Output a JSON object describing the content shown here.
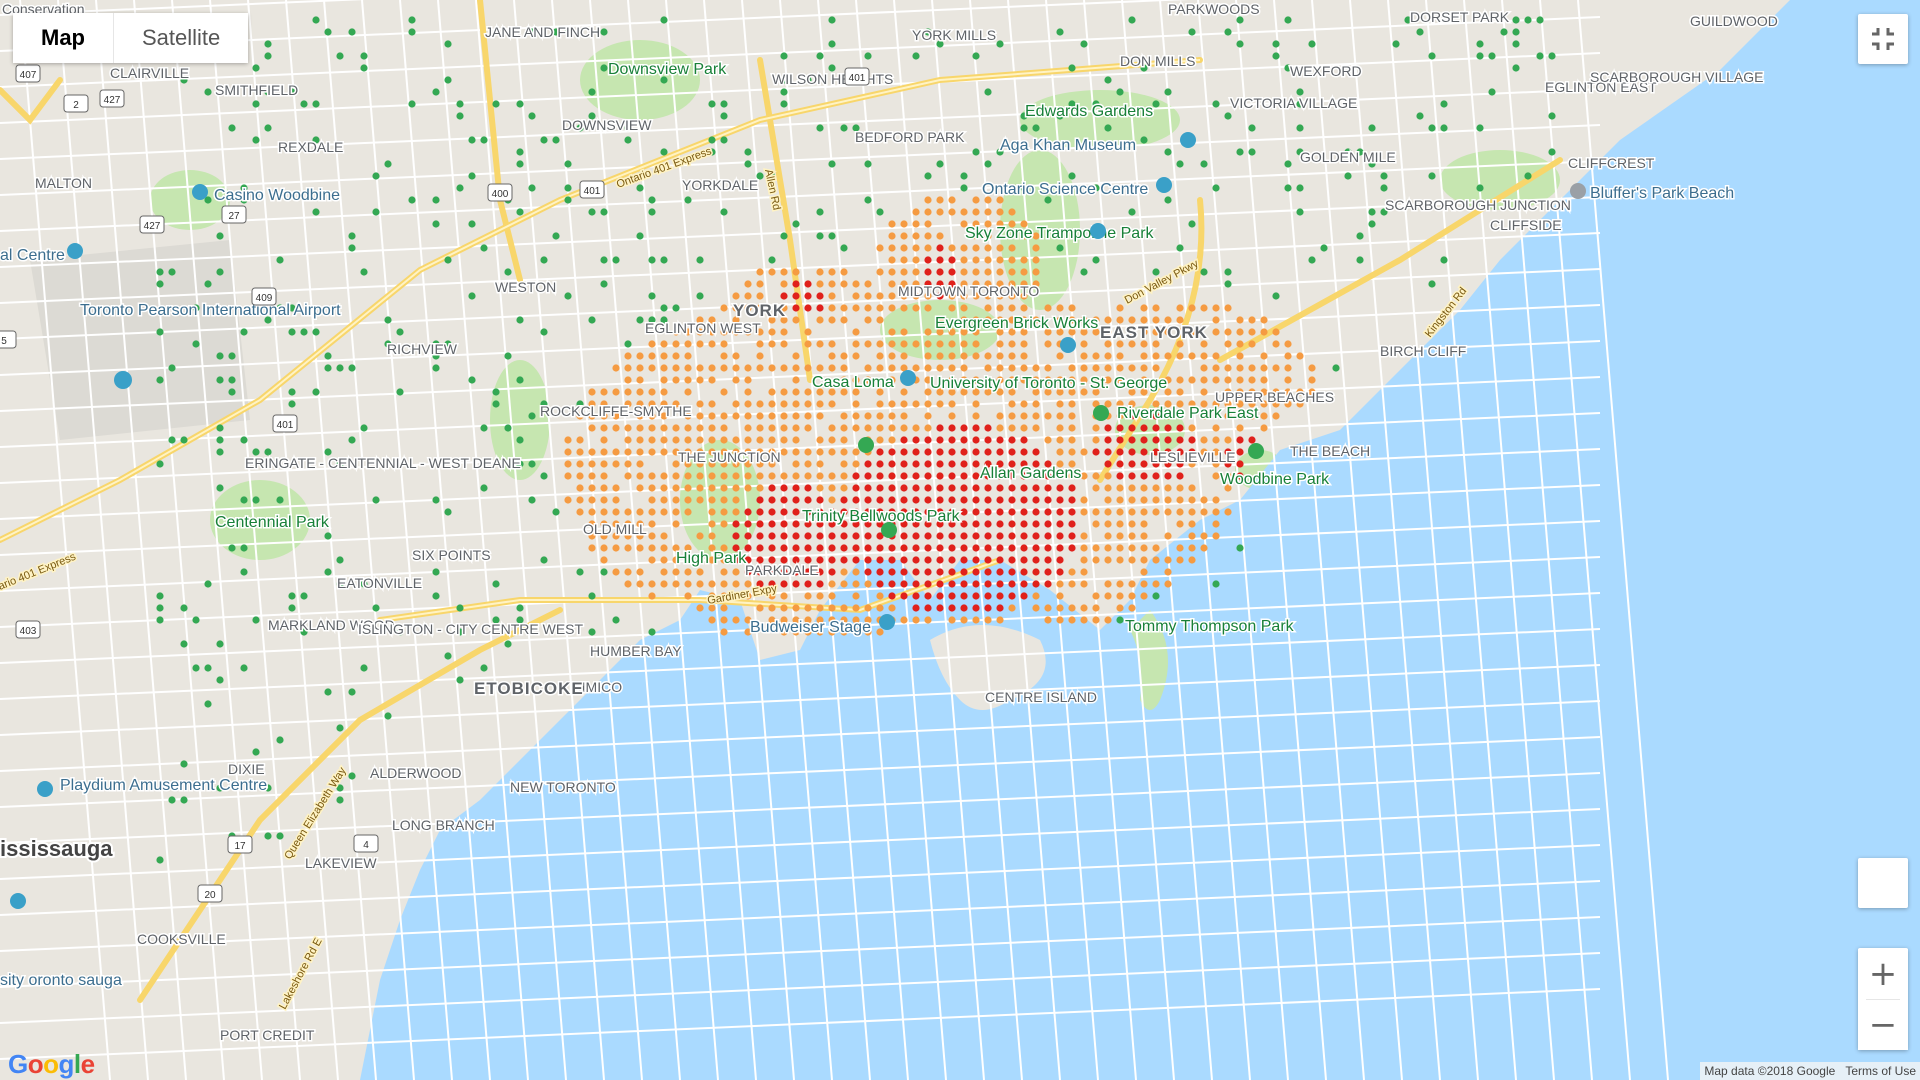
{
  "map_type": {
    "map_label": "Map",
    "satellite_label": "Satellite",
    "selected": "Map"
  },
  "controls": {
    "fullscreen_icon": "fullscreen-exit-icon",
    "pegman_icon": "street-view-pegman-icon",
    "zoom_in_label": "+",
    "zoom_out_label": "−"
  },
  "labels": {
    "district": [
      "YORK",
      "EAST YORK",
      "ETOBICOKE"
    ],
    "city": [
      "issis​sauga"
    ],
    "places": [
      "Conservation",
      "JANE AND FINCH",
      "CLAIRVILLE",
      "SMITHFIELD",
      "REXDALE",
      "MALTON",
      "DOWNSVIEW",
      "WILSON HEIGHTS",
      "YORK MILLS",
      "BEDFORD PARK",
      "YORKDALE",
      "DON MILLS",
      "PARKWOODS",
      "DORSET PARK",
      "GUILDWOOD",
      "WEXFORD",
      "VICTORIA VILLAGE",
      "EGLINTON EAST",
      "SCARBOROUGH VILLAGE",
      "GOLDEN MILE",
      "CLIFFCREST",
      "SCARBOROUGH JUNCTION",
      "CLIFFSIDE",
      "WESTON",
      "MIDTOWN TORONTO",
      "EGLINTON WEST",
      "RICHVIEW",
      "ROCKCLIFFE-SMYTHE",
      "THE JUNCTION",
      "ERINGATE - CENTENNIAL - WEST DEANE",
      "OLD MILL",
      "SIX POINTS",
      "EATONVILLE",
      "MARKLAND WOOD",
      "ISLINGTON - CITY CENTRE WEST",
      "HUMBER BAY",
      "MIMICO",
      "ALDERWOOD",
      "NEW TORONTO",
      "DIXIE",
      "LONG BRANCH",
      "LAKEVIEW",
      "COOKSVILLE",
      "PORT CREDIT",
      "BIRCH CLIFF",
      "UPPER BEACHES",
      "THE BEACH",
      "LESLIEVILLE",
      "PARKDALE",
      "CENTRE ISLAND"
    ],
    "poi": [
      "Downsview Park",
      "Edwards Gardens",
      "Aga Khan Museum",
      "Casino Woodbine",
      "Ontario Science Centre",
      "Sky Zone Trampoline Park",
      "Evergreen Brick Works",
      "Casa Loma",
      "University of Toronto - St. George",
      "Toronto Pearson International Airport",
      "Riverdale Park East",
      "Woodbine Park",
      "Trinity Bellwoods Park",
      "High Park",
      "Centennial Park",
      "Budweiser Stage",
      "Tommy Thompson Park",
      "Playdium Amusement Centre",
      "Bluffer's Park Beach",
      "Allan Gardens",
      "sity oronto sauga",
      "al Centre"
    ],
    "roads": [
      "Ontario 401 Express",
      "Allen Rd",
      "Don Valley Pkwy",
      "Kingston Rd",
      "Gardiner Expy",
      "Queen Elizabeth Way",
      "Lakeshore Rd E",
      "ario 401 Express"
    ],
    "shields": [
      "407",
      "427",
      "2",
      "27",
      "427",
      "409",
      "401",
      "400",
      "401",
      "401",
      "403",
      "17",
      "4",
      "20",
      "5"
    ]
  },
  "heatmap": {
    "legend_colors": {
      "low": "#34a853",
      "medium": "#f59b42",
      "high": "#e0211b"
    }
  },
  "footer": {
    "logo_text": "Google",
    "attribution": "Map data ©2018 Google",
    "terms_label": "Terms of Use"
  }
}
